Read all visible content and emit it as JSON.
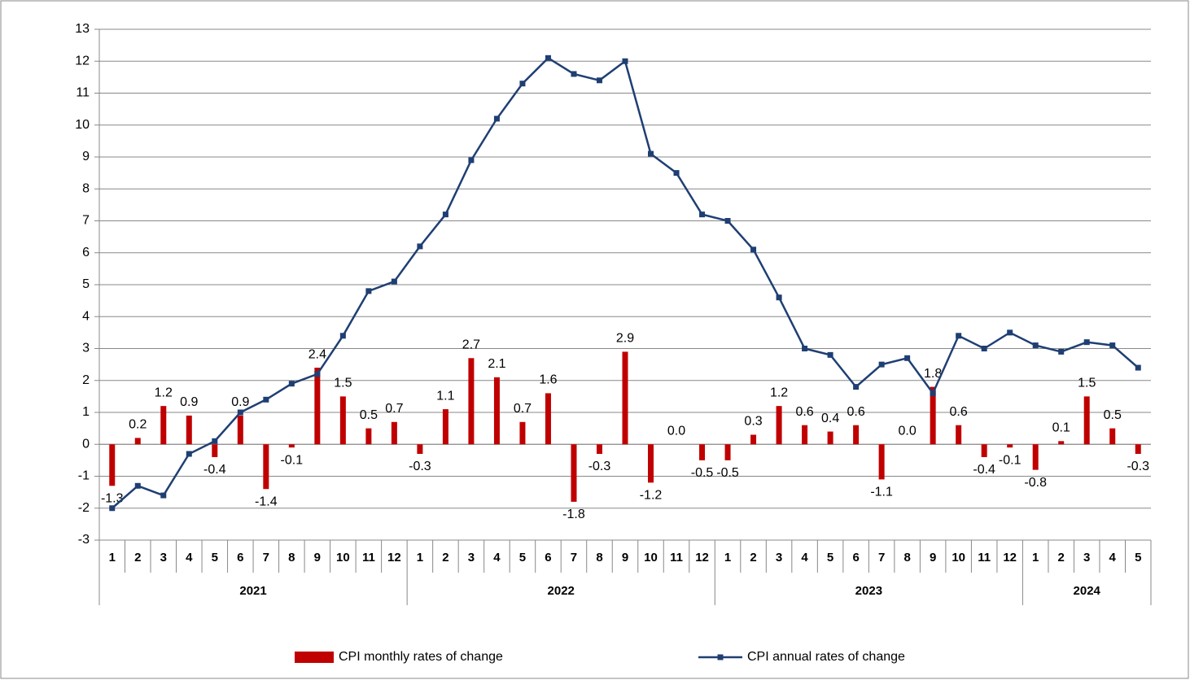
{
  "chart_data": {
    "type": "bar-line",
    "years": [
      {
        "name": "2021",
        "months": [
          "1",
          "2",
          "3",
          "4",
          "5",
          "6",
          "7",
          "8",
          "9",
          "10",
          "11",
          "12"
        ]
      },
      {
        "name": "2022",
        "months": [
          "1",
          "2",
          "3",
          "4",
          "5",
          "6",
          "7",
          "8",
          "9",
          "10",
          "11",
          "12"
        ]
      },
      {
        "name": "2023",
        "months": [
          "1",
          "2",
          "3",
          "4",
          "5",
          "6",
          "7",
          "8",
          "9",
          "10",
          "11",
          "12"
        ]
      },
      {
        "name": "2024",
        "months": [
          "1",
          "2",
          "3",
          "4",
          "5"
        ]
      }
    ],
    "series": [
      {
        "name": "CPI monthly rates of change",
        "type": "bar",
        "color": "#c00000",
        "values": [
          -1.3,
          0.2,
          1.2,
          0.9,
          -0.4,
          0.9,
          -1.4,
          -0.1,
          2.4,
          1.5,
          0.5,
          0.7,
          -0.3,
          1.1,
          2.7,
          2.1,
          0.7,
          1.6,
          -1.8,
          -0.3,
          2.9,
          -1.2,
          0.0,
          -0.5,
          -0.5,
          0.3,
          1.2,
          0.6,
          0.4,
          0.6,
          -1.1,
          0.0,
          1.8,
          0.6,
          -0.4,
          -0.1,
          -0.8,
          0.1,
          1.5,
          0.5,
          -0.3
        ],
        "value_labels": [
          "-1.3",
          "0.2",
          "1.2",
          "0.9",
          "-0.4",
          "0.9",
          "-1.4",
          "-0.1",
          "2.4",
          "1.5",
          "0.5",
          "0.7",
          "-0.3",
          "1.1",
          "2.7",
          "2.1",
          "0.7",
          "1.6",
          "-1.8",
          "-0.3",
          "2.9",
          "-1.2",
          "0.0",
          "-0.5",
          "-0.5",
          "0.3",
          "1.2",
          "0.6",
          "0.4",
          "0.6",
          "-1.1",
          "0.0",
          "1.8",
          "0.6",
          "-0.4",
          "-0.1",
          "-0.8",
          "0.1",
          "1.5",
          "0.5",
          "-0.3"
        ]
      },
      {
        "name": "CPI annual rates of change",
        "type": "line",
        "color": "#1f3f73",
        "values": [
          -2.0,
          -1.3,
          -1.6,
          -0.3,
          0.1,
          1.0,
          1.4,
          1.9,
          2.2,
          3.4,
          4.8,
          5.1,
          6.2,
          7.2,
          8.9,
          10.2,
          11.3,
          12.1,
          11.6,
          11.4,
          12.0,
          9.1,
          8.5,
          7.2,
          7.0,
          6.1,
          4.6,
          3.0,
          2.8,
          1.8,
          2.5,
          2.7,
          1.6,
          3.4,
          3.0,
          3.5,
          3.1,
          2.9,
          3.2,
          3.1,
          2.4
        ]
      }
    ],
    "ylim": [
      -3,
      13
    ],
    "yticks": [
      -3,
      -2,
      -1,
      0,
      1,
      2,
      3,
      4,
      5,
      6,
      7,
      8,
      9,
      10,
      11,
      12,
      13
    ],
    "grid": true,
    "legend": "bottom"
  }
}
